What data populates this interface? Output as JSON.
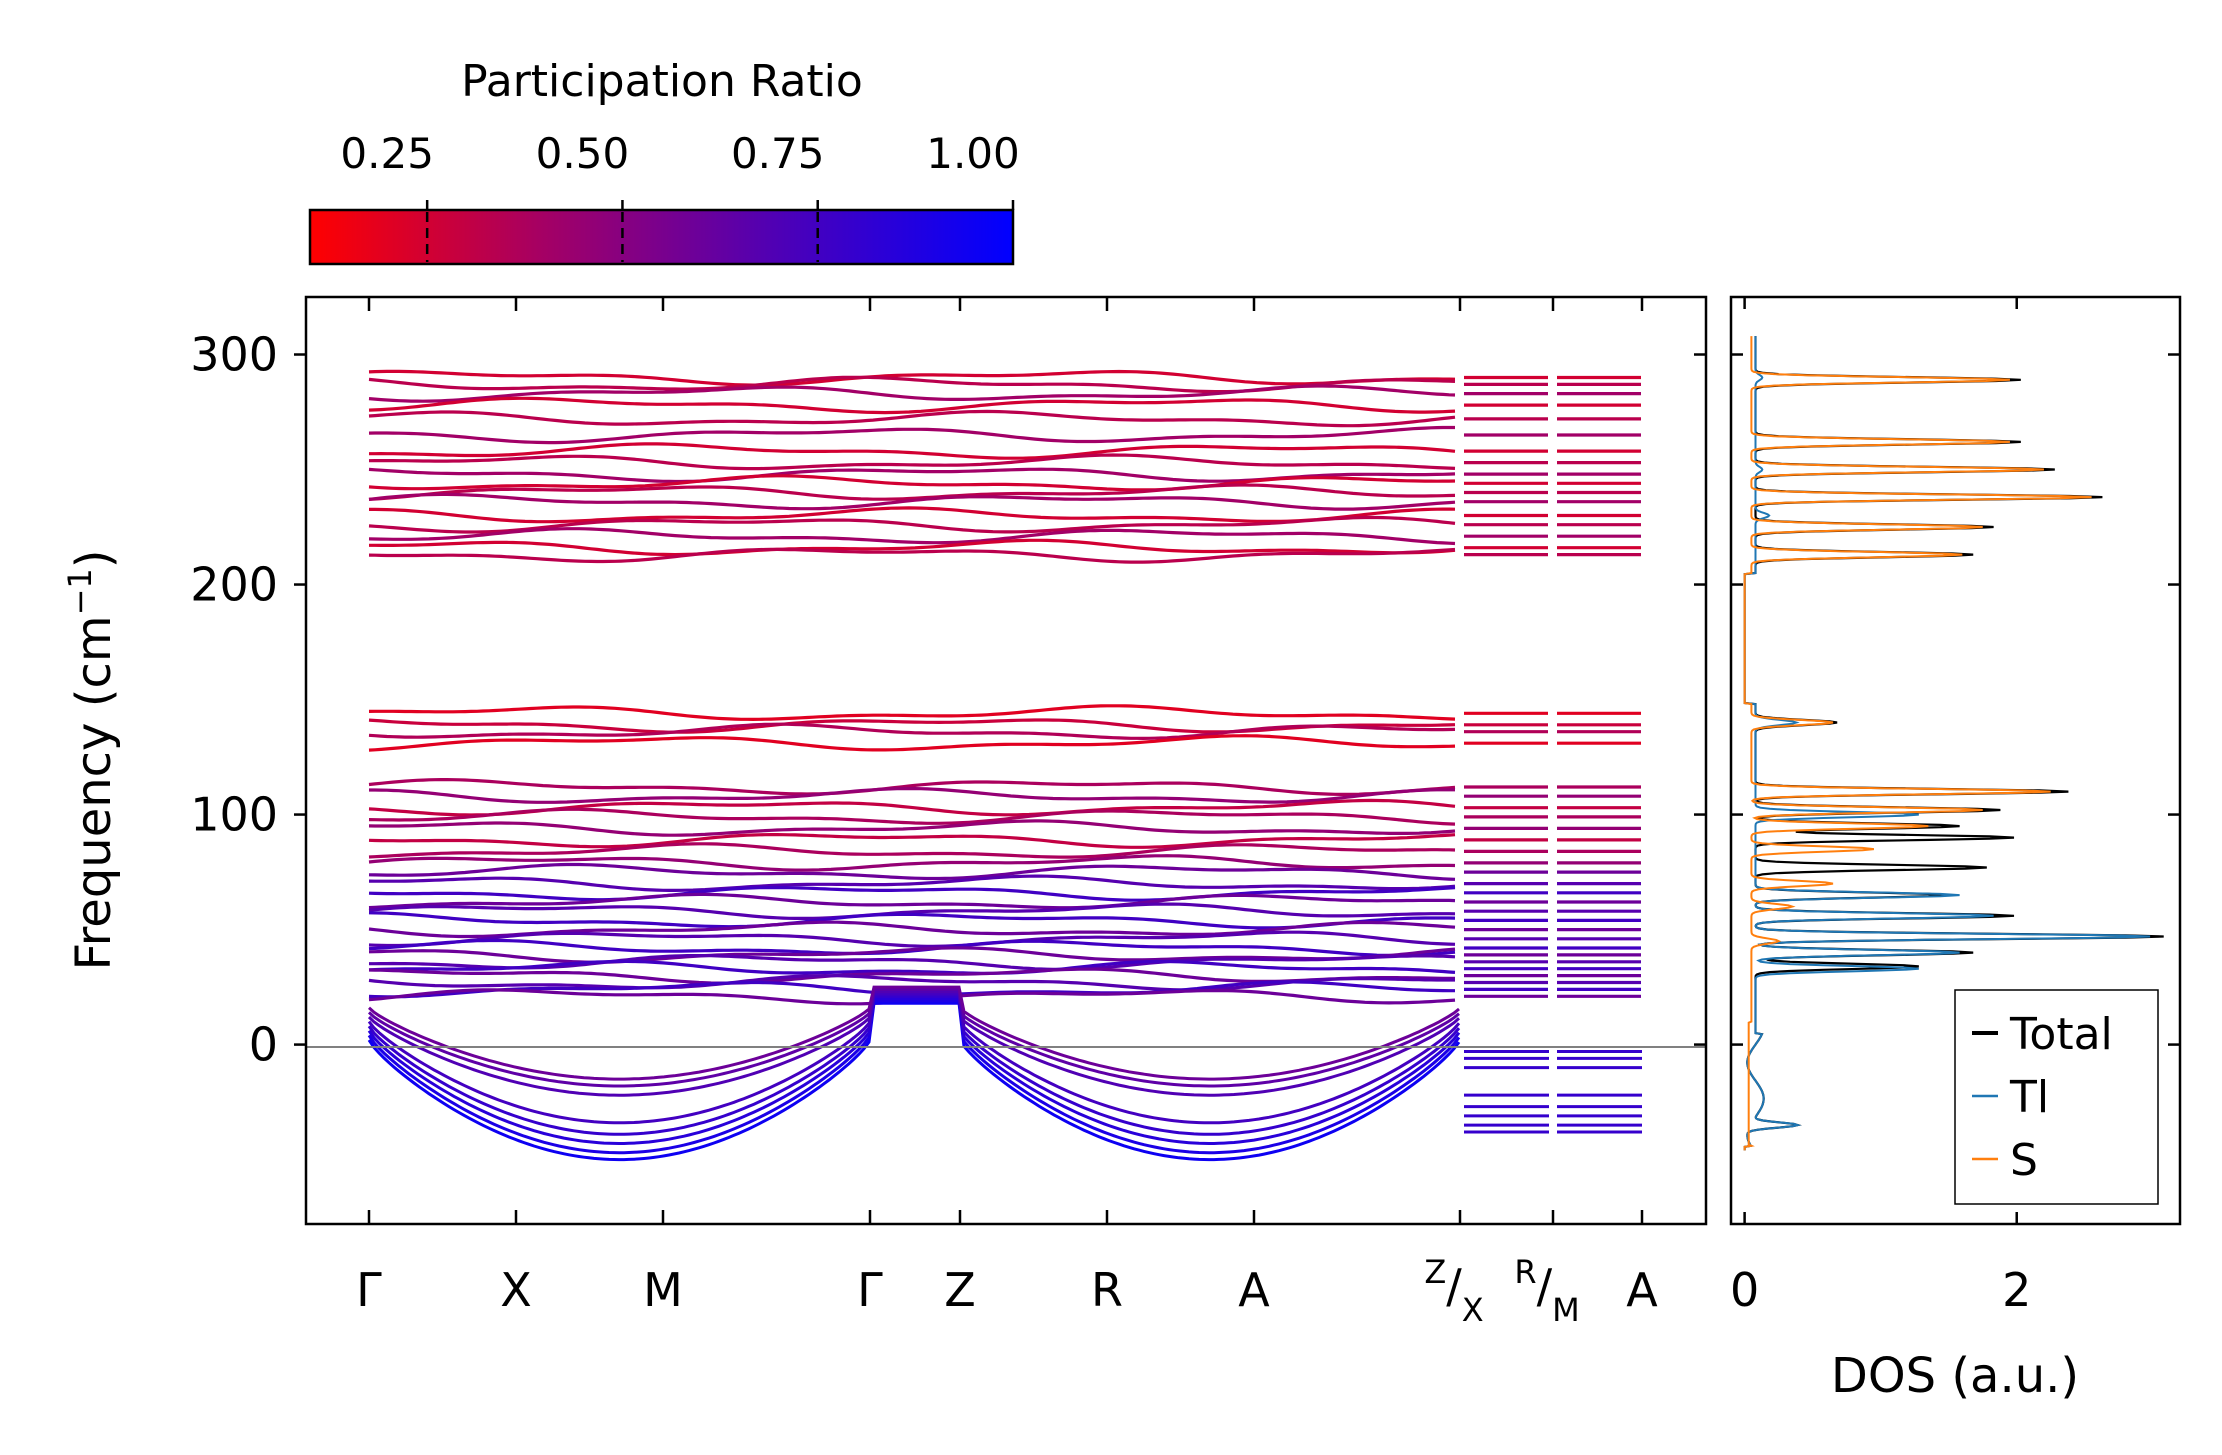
{
  "chart_data": [
    {
      "type": "line",
      "name": "phonon-band-structure",
      "ylabel_main": "Frequency (cm",
      "ylabel_sup": "−1",
      "ylabel_close": ")",
      "ylim": [
        -78,
        325
      ],
      "yticks": [
        0,
        100,
        200,
        300
      ],
      "ytick_labels": [
        "0",
        "100",
        "200",
        "300"
      ],
      "path_labels": [
        "Γ",
        "X",
        "M",
        "Γ",
        "Z",
        "R",
        "A",
        "Z/X",
        "R/M",
        "A"
      ],
      "colorbar": {
        "title": "Participation Ratio",
        "range": [
          0.1,
          1.0
        ],
        "ticks": [
          0.25,
          0.5,
          0.75,
          1.0
        ],
        "tick_labels": [
          "0.25",
          "0.50",
          "0.75",
          "1.00"
        ],
        "colors": [
          "#ff0000",
          "#a50064",
          "#5000b4",
          "#0000ff"
        ]
      },
      "flat_bands_high": [
        290,
        287,
        283,
        278,
        272,
        265,
        258,
        253,
        248,
        244,
        240,
        236,
        230,
        226,
        221,
        216,
        213
      ],
      "flat_bands_mid": [
        144,
        139,
        136,
        131,
        112,
        108,
        103,
        99,
        94,
        89,
        84,
        79
      ],
      "flat_bands_low": [
        75,
        70,
        66,
        62,
        58,
        54,
        50,
        46,
        42,
        39,
        36,
        33,
        30,
        27,
        24,
        21
      ],
      "low_modes_min_at_M_and_A": [
        -44,
        -41,
        -37,
        -33,
        -28,
        -16,
        -12,
        -9
      ],
      "color_scale_label": "colored by participation ratio"
    },
    {
      "type": "line",
      "name": "phonon-dos",
      "xlabel": "DOS (a.u.)",
      "xlim": [
        -0.1,
        3.2
      ],
      "xticks": [
        0,
        2
      ],
      "xtick_labels": [
        "0",
        "2"
      ],
      "ylim": [
        -78,
        325
      ],
      "series": [
        {
          "name": "Total",
          "color": "#000000"
        },
        {
          "name": "Tl",
          "color": "#1f77b4"
        },
        {
          "name": "S",
          "color": "#ff7f0e"
        }
      ],
      "peaks": {
        "Total": [
          [
            2.55,
            238
          ],
          [
            2.2,
            250
          ],
          [
            1.95,
            262
          ],
          [
            1.95,
            289
          ],
          [
            1.75,
            225
          ],
          [
            1.6,
            213
          ],
          [
            0.6,
            140
          ],
          [
            2.3,
            110
          ],
          [
            1.8,
            102
          ],
          [
            1.5,
            95
          ],
          [
            1.9,
            90
          ],
          [
            1.7,
            77
          ],
          [
            1.4,
            65
          ],
          [
            1.9,
            56
          ],
          [
            3.0,
            47
          ],
          [
            1.6,
            40
          ],
          [
            1.2,
            34
          ],
          [
            0.35,
            -35
          ]
        ],
        "Tl": [
          [
            0.05,
            290
          ],
          [
            0.05,
            250
          ],
          [
            0.1,
            230
          ],
          [
            0.3,
            140
          ],
          [
            1.2,
            100
          ],
          [
            1.5,
            65
          ],
          [
            1.75,
            56
          ],
          [
            2.9,
            47
          ],
          [
            1.5,
            40
          ],
          [
            1.2,
            33
          ],
          [
            0.35,
            -35
          ]
        ],
        "S": [
          [
            2.5,
            238
          ],
          [
            2.15,
            250
          ],
          [
            1.9,
            262
          ],
          [
            1.9,
            289
          ],
          [
            1.7,
            225
          ],
          [
            1.55,
            213
          ],
          [
            0.6,
            140
          ],
          [
            2.2,
            110
          ],
          [
            1.7,
            102
          ],
          [
            1.3,
            95
          ],
          [
            0.9,
            85
          ],
          [
            0.6,
            70
          ],
          [
            0.3,
            60
          ],
          [
            0.2,
            45
          ]
        ]
      }
    }
  ]
}
